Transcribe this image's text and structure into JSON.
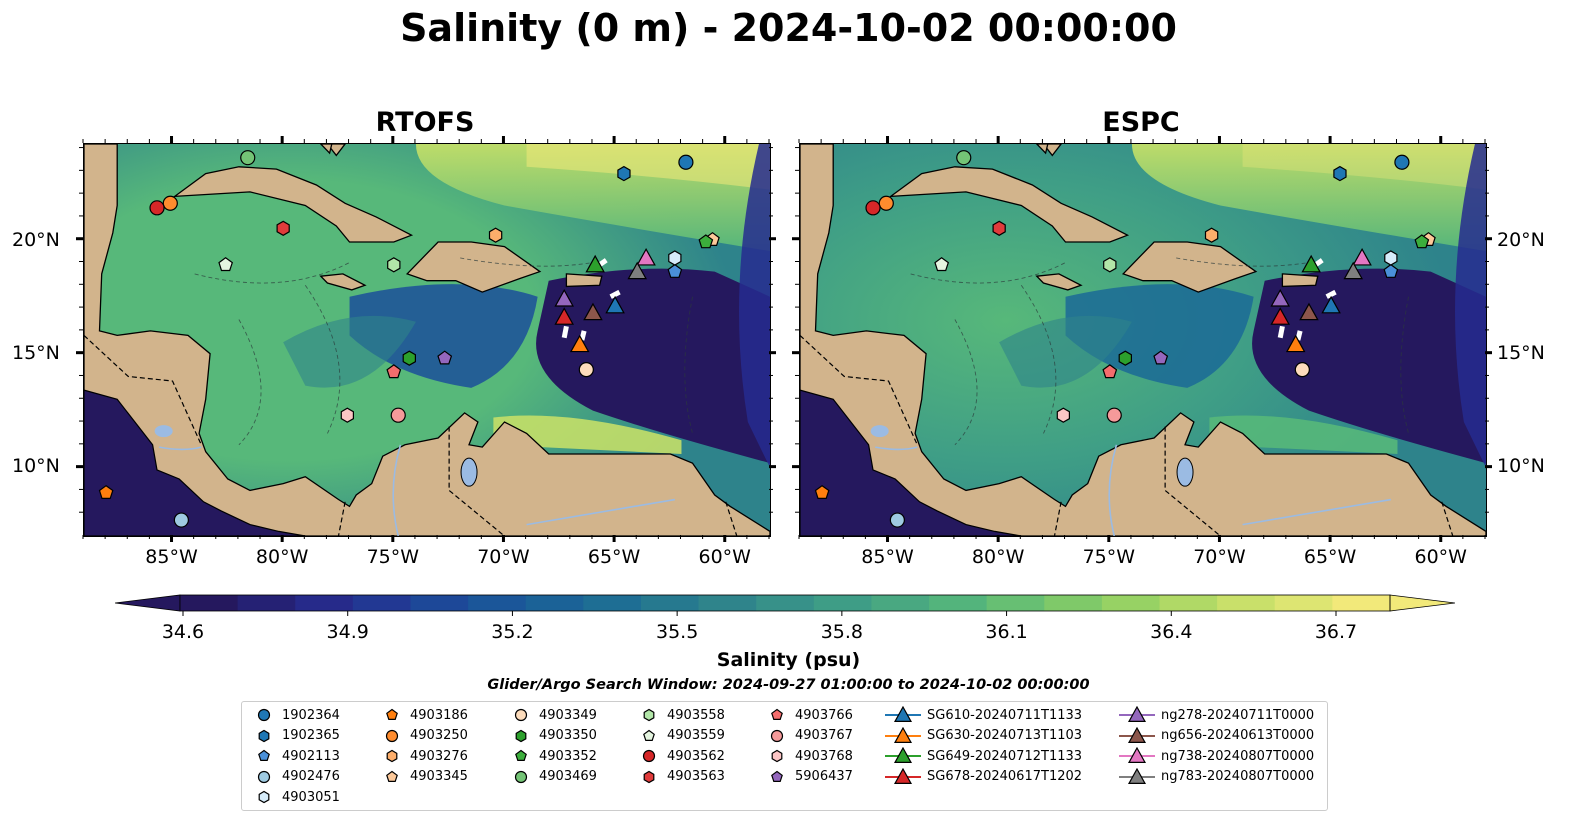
{
  "title": "Salinity (0 m) - 2024-10-02 00:00:00",
  "panels": [
    {
      "title": "RTOFS"
    },
    {
      "title": "ESPC"
    }
  ],
  "map_extent": {
    "lon": [
      -89,
      -58
    ],
    "lat": [
      7,
      24.2
    ]
  },
  "lat_ticks": [
    "20°N",
    "15°N",
    "10°N"
  ],
  "lat_values": [
    20,
    15,
    10
  ],
  "lon_ticks": [
    "85°W",
    "80°W",
    "75°W",
    "70°W",
    "65°W",
    "60°W"
  ],
  "lon_values": [
    -85,
    -80,
    -75,
    -70,
    -65,
    -60
  ],
  "colorbar": {
    "label": "Salinity (psu)",
    "ticks": [
      "34.6",
      "34.9",
      "35.2",
      "35.5",
      "35.8",
      "36.1",
      "36.4",
      "36.7"
    ],
    "range": [
      34.6,
      36.7
    ],
    "colormap": [
      "#25185e",
      "#262c8f",
      "#1b4f9a",
      "#1b6a96",
      "#2e838b",
      "#3f9e86",
      "#57b87a",
      "#8ccf63",
      "#c4df68",
      "#f2e97a"
    ]
  },
  "search_window": "Glider/Argo Search Window: 2024-09-27 01:00:00 to 2024-10-02 00:00:00",
  "legend": [
    {
      "label": "1902364",
      "marker": "circle",
      "color": "#1f77b4"
    },
    {
      "label": "1902365",
      "marker": "hexagon",
      "color": "#1f77b4"
    },
    {
      "label": "4902113",
      "marker": "pentagon",
      "color": "#4a90d9"
    },
    {
      "label": "4902476",
      "marker": "circle",
      "color": "#9ecae1"
    },
    {
      "label": "4903051",
      "marker": "hexagon",
      "color": "#d6ecfa"
    },
    {
      "label": "4903186",
      "marker": "pentagon",
      "color": "#ff7f0e"
    },
    {
      "label": "4903250",
      "marker": "circle",
      "color": "#ff8c2e"
    },
    {
      "label": "4903276",
      "marker": "hexagon",
      "color": "#fdae6b"
    },
    {
      "label": "4903345",
      "marker": "pentagon",
      "color": "#fdc99a"
    },
    {
      "label": "4903349",
      "marker": "circle",
      "color": "#fddcbc"
    },
    {
      "label": "4903350",
      "marker": "hexagon",
      "color": "#2ca02c"
    },
    {
      "label": "4903352",
      "marker": "pentagon",
      "color": "#3cae3c"
    },
    {
      "label": "4903469",
      "marker": "circle",
      "color": "#74c476"
    },
    {
      "label": "4903558",
      "marker": "hexagon",
      "color": "#b2e6a8"
    },
    {
      "label": "4903559",
      "marker": "pentagon",
      "color": "#e5f5e0"
    },
    {
      "label": "4903562",
      "marker": "circle",
      "color": "#d62728"
    },
    {
      "label": "4903563",
      "marker": "hexagon",
      "color": "#e03b3b"
    },
    {
      "label": "4903766",
      "marker": "pentagon",
      "color": "#f46d6d"
    },
    {
      "label": "4903767",
      "marker": "circle",
      "color": "#f59a9a"
    },
    {
      "label": "4903768",
      "marker": "hexagon",
      "color": "#fcc5c5"
    },
    {
      "label": "5906437",
      "marker": "pentagon",
      "color": "#9467bd"
    },
    {
      "label": "SG610-20240711T1133",
      "marker": "triangle",
      "color": "#1f77b4",
      "line": true
    },
    {
      "label": "SG630-20240713T1103",
      "marker": "triangle",
      "color": "#ff7f0e",
      "line": true
    },
    {
      "label": "SG649-20240712T1133",
      "marker": "triangle",
      "color": "#2ca02c",
      "line": true
    },
    {
      "label": "SG678-20240617T1202",
      "marker": "triangle",
      "color": "#d62728",
      "line": true
    },
    {
      "label": "ng278-20240711T0000",
      "marker": "triangle",
      "color": "#9467bd",
      "line": true
    },
    {
      "label": "ng656-20240613T0000",
      "marker": "triangle",
      "color": "#8c564b",
      "line": true
    },
    {
      "label": "ng738-20240807T0000",
      "marker": "triangle",
      "color": "#e377c2",
      "line": true
    },
    {
      "label": "ng783-20240807T0000",
      "marker": "triangle",
      "color": "#7f7f7f",
      "line": true
    }
  ],
  "platforms": [
    {
      "id": "1902364",
      "lon": -61.8,
      "lat": 23.4
    },
    {
      "id": "1902365",
      "lon": -64.6,
      "lat": 22.9
    },
    {
      "id": "4902113",
      "lon": -62.3,
      "lat": 18.6
    },
    {
      "id": "4902476",
      "lon": -84.6,
      "lat": 7.7
    },
    {
      "id": "4903051",
      "lon": -62.3,
      "lat": 19.2
    },
    {
      "id": "4903186",
      "lon": -88.0,
      "lat": 8.9
    },
    {
      "id": "4903250",
      "lon": -85.1,
      "lat": 21.6
    },
    {
      "id": "4903276",
      "lon": -70.4,
      "lat": 20.2
    },
    {
      "id": "4903345",
      "lon": -60.6,
      "lat": 20.0
    },
    {
      "id": "4903349",
      "lon": -66.3,
      "lat": 14.3
    },
    {
      "id": "4903350",
      "lon": -74.3,
      "lat": 14.8
    },
    {
      "id": "4903352",
      "lon": -60.9,
      "lat": 19.9
    },
    {
      "id": "4903469",
      "lon": -81.6,
      "lat": 23.6
    },
    {
      "id": "4903558",
      "lon": -75.0,
      "lat": 18.9
    },
    {
      "id": "4903559",
      "lon": -82.6,
      "lat": 18.9
    },
    {
      "id": "4903562",
      "lon": -85.7,
      "lat": 21.4
    },
    {
      "id": "4903563",
      "lon": -80.0,
      "lat": 20.5
    },
    {
      "id": "4903766",
      "lon": -75.0,
      "lat": 14.2
    },
    {
      "id": "4903767",
      "lon": -74.8,
      "lat": 12.3
    },
    {
      "id": "4903768",
      "lon": -77.1,
      "lat": 12.3
    },
    {
      "id": "5906437",
      "lon": -72.7,
      "lat": 14.8
    },
    {
      "id": "SG610-20240711T1133",
      "lon": -65.0,
      "lat": 17.1
    },
    {
      "id": "SG630-20240713T1103",
      "lon": -66.6,
      "lat": 15.4
    },
    {
      "id": "SG649-20240712T1133",
      "lon": -65.9,
      "lat": 18.9
    },
    {
      "id": "SG678-20240617T1202",
      "lon": -67.3,
      "lat": 16.6
    },
    {
      "id": "ng278-20240711T0000",
      "lon": -67.3,
      "lat": 17.4
    },
    {
      "id": "ng656-20240613T0000",
      "lon": -66.0,
      "lat": 16.8
    },
    {
      "id": "ng738-20240807T0000",
      "lon": -63.6,
      "lat": 19.2
    },
    {
      "id": "ng783-20240807T0000",
      "lon": -64.0,
      "lat": 18.6
    }
  ]
}
